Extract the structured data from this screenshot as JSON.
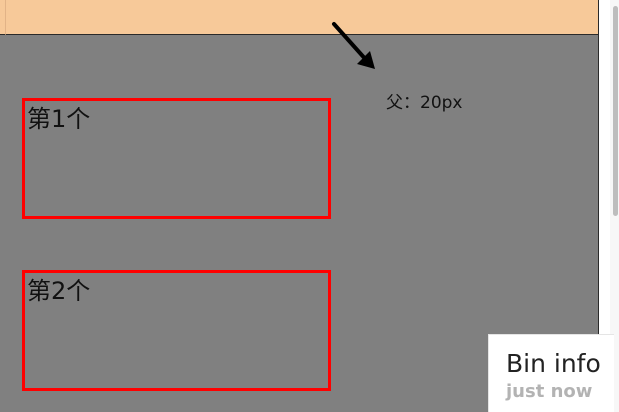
{
  "annotation": {
    "text": "父：20px",
    "arrow_icon": "arrow-down-right-icon"
  },
  "boxes": [
    {
      "label": "第1个"
    },
    {
      "label": "第2个"
    }
  ],
  "bin_panel": {
    "title": "Bin info",
    "time": "just now"
  },
  "colors": {
    "top_bar": "#f7c999",
    "gray_area": "#808080",
    "box_border": "#ff0000",
    "arrow": "#000000",
    "panel_bg": "#ffffff"
  }
}
